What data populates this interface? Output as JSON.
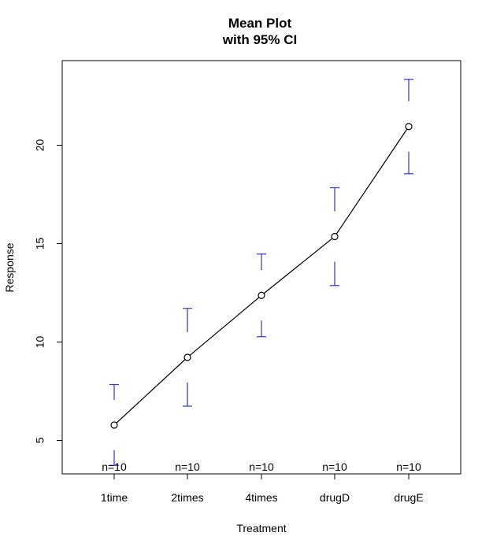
{
  "chart_data": {
    "type": "line",
    "title": "Mean Plot",
    "subtitle": "with 95% CI",
    "xlabel": "Treatment",
    "ylabel": "Response",
    "categories": [
      "1time",
      "2times",
      "4times",
      "drugD",
      "drugE"
    ],
    "means": [
      5.78,
      9.22,
      12.37,
      15.36,
      20.95
    ],
    "ci_lower": [
      3.73,
      6.74,
      10.27,
      12.87,
      18.55
    ],
    "ci_upper": [
      7.84,
      11.71,
      14.47,
      17.84,
      23.35
    ],
    "n_labels": [
      "n=10",
      "n=10",
      "n=10",
      "n=10",
      "n=10"
    ],
    "y_ticks": [
      5,
      10,
      15,
      20
    ],
    "ylim": [
      3.3,
      24.3
    ],
    "grid": false,
    "colors": {
      "ci": "#3333cc",
      "line": "#000000"
    }
  }
}
